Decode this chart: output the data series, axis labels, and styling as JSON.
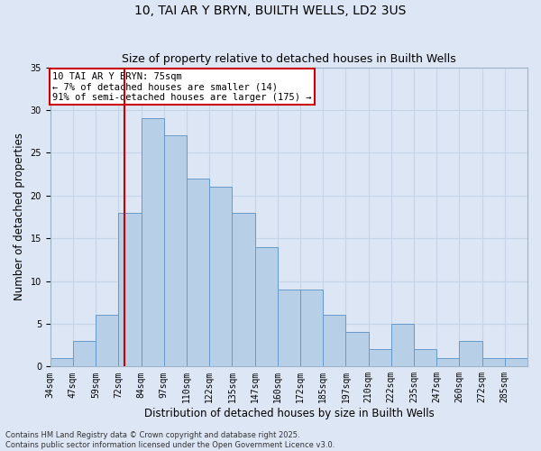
{
  "title1": "10, TAI AR Y BRYN, BUILTH WELLS, LD2 3US",
  "title2": "Size of property relative to detached houses in Builth Wells",
  "xlabel": "Distribution of detached houses by size in Builth Wells",
  "ylabel": "Number of detached properties",
  "categories": [
    "34sqm",
    "47sqm",
    "59sqm",
    "72sqm",
    "84sqm",
    "97sqm",
    "110sqm",
    "122sqm",
    "135sqm",
    "147sqm",
    "160sqm",
    "172sqm",
    "185sqm",
    "197sqm",
    "210sqm",
    "222sqm",
    "235sqm",
    "247sqm",
    "260sqm",
    "272sqm",
    "285sqm"
  ],
  "values": [
    1,
    3,
    6,
    18,
    29,
    27,
    22,
    21,
    18,
    14,
    9,
    9,
    6,
    4,
    2,
    5,
    2,
    1,
    3,
    1,
    1
  ],
  "bar_color": "#b8cfe8",
  "bar_edge_color": "#6699cc",
  "vline_color": "#cc0000",
  "annotation_text": "10 TAI AR Y BRYN: 75sqm\n← 7% of detached houses are smaller (14)\n91% of semi-detached houses are larger (175) →",
  "annotation_box_color": "#ffffff",
  "annotation_box_edge": "#cc0000",
  "ylim": [
    0,
    35
  ],
  "yticks": [
    0,
    5,
    10,
    15,
    20,
    25,
    30,
    35
  ],
  "grid_color": "#c8d4e8",
  "bg_color": "#dce6f5",
  "footer": "Contains HM Land Registry data © Crown copyright and database right 2025.\nContains public sector information licensed under the Open Government Licence v3.0.",
  "title_fontsize": 10,
  "subtitle_fontsize": 9,
  "tick_fontsize": 7,
  "label_fontsize": 8.5,
  "footer_fontsize": 6,
  "annotation_fontsize": 7.5
}
